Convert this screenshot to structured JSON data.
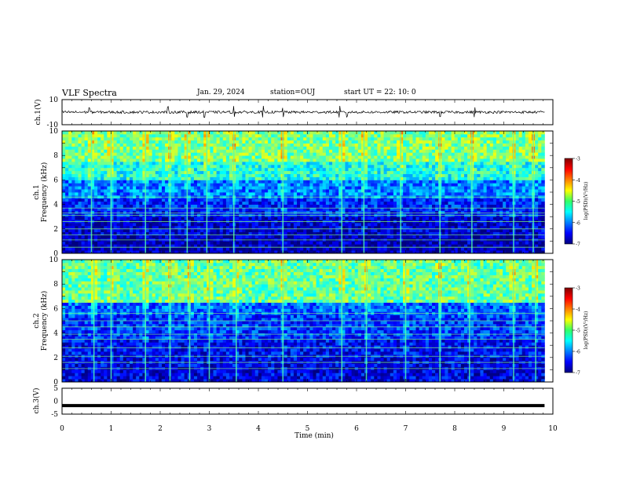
{
  "header": {
    "title": "VLF Spectra",
    "date": "Jan. 29, 2024",
    "station": "station=OUJ",
    "start": "start UT = 22: 10: 0"
  },
  "panels": {
    "ch1_waveform": {
      "ylabel": "ch.1(V)",
      "yticks": [
        "10",
        "-10"
      ]
    },
    "ch1_spectrum": {
      "ylabel_line1": "ch.1",
      "ylabel_line2": "Frequency (kHz)",
      "yticks": [
        "0",
        "2",
        "4",
        "6",
        "8",
        "10"
      ]
    },
    "ch2_spectrum": {
      "ylabel_line1": "ch.2",
      "ylabel_line2": "Frequency (kHz)",
      "yticks": [
        "0",
        "2",
        "4",
        "6",
        "8",
        "10"
      ]
    },
    "ch3_waveform": {
      "ylabel": "ch.3(V)",
      "yticks": [
        "5",
        "0",
        "-5"
      ]
    }
  },
  "colorbar": {
    "label": "log(PSD)(V²/Hz)",
    "ticks": [
      "-3",
      "-4",
      "-5",
      "-6",
      "-7"
    ]
  },
  "xaxis": {
    "label": "Time (min)",
    "ticks": [
      "0",
      "1",
      "2",
      "3",
      "4",
      "5",
      "6",
      "7",
      "8",
      "9",
      "10"
    ]
  },
  "chart_data": [
    {
      "type": "line",
      "name": "ch.1 waveform",
      "xlabel": "",
      "ylabel": "ch.1(V)",
      "xlim": [
        0,
        10
      ],
      "ylim": [
        -10,
        10
      ],
      "data_extent_x": [
        0,
        9.83
      ],
      "baseline_v": 0,
      "typical_amplitude_v": 1,
      "spike_times_min": [
        0.55,
        2.15,
        2.55,
        2.9,
        3.5,
        4.1,
        4.5,
        5.65,
        5.8,
        7.7,
        8.4
      ],
      "color": "#000000"
    },
    {
      "type": "heatmap",
      "name": "ch.1 spectrogram",
      "xlabel": "",
      "ylabel": "Frequency (kHz)",
      "xlim": [
        0,
        10
      ],
      "ylim": [
        0,
        10
      ],
      "data_extent_x": [
        0,
        9.83
      ],
      "zlabel": "log(PSD)(V²/Hz)",
      "zlim": [
        -7,
        -3
      ],
      "colormap": "jet",
      "band_levels": [
        {
          "freq_khz": [
            0,
            1.6
          ],
          "log_psd": -6.8
        },
        {
          "freq_khz": [
            1.6,
            3.0
          ],
          "log_psd": -6.7
        },
        {
          "freq_khz": [
            3.0,
            4.5
          ],
          "log_psd": -6.4
        },
        {
          "freq_khz": [
            4.5,
            6.0
          ],
          "log_psd": -6.0
        },
        {
          "freq_khz": [
            6.0,
            7.5
          ],
          "log_psd": -5.4
        },
        {
          "freq_khz": [
            7.5,
            10
          ],
          "log_psd": -5.0
        }
      ],
      "horizontal_lines_khz": [
        0.5,
        1.1,
        1.5,
        2.0,
        2.6,
        3.1,
        3.3,
        3.7,
        4.6
      ],
      "burst_times_min": [
        0.6,
        1.0,
        1.7,
        2.2,
        2.55,
        2.95,
        3.5,
        4.5,
        5.7,
        6.15,
        6.9,
        7.7,
        8.35,
        9.2,
        9.6
      ]
    },
    {
      "type": "heatmap",
      "name": "ch.2 spectrogram",
      "xlabel": "",
      "ylabel": "Frequency (kHz)",
      "xlim": [
        0,
        10
      ],
      "ylim": [
        0,
        10
      ],
      "data_extent_x": [
        0,
        9.83
      ],
      "zlabel": "log(PSD)(V²/Hz)",
      "zlim": [
        -7,
        -3
      ],
      "colormap": "jet",
      "band_levels": [
        {
          "freq_khz": [
            0,
            2.0
          ],
          "log_psd": -6.6
        },
        {
          "freq_khz": [
            2.0,
            3.5
          ],
          "log_psd": -6.5
        },
        {
          "freq_khz": [
            3.5,
            5.5
          ],
          "log_psd": -6.3
        },
        {
          "freq_khz": [
            5.5,
            6.5
          ],
          "log_psd": -6.1
        },
        {
          "freq_khz": [
            6.5,
            10
          ],
          "log_psd": -5.1
        }
      ],
      "horizontal_lines_khz": [
        1.1,
        1.6,
        2.1,
        2.8,
        3.5,
        3.9,
        4.5,
        5.0,
        5.6
      ],
      "burst_times_min": [
        0.65,
        1.0,
        1.7,
        2.2,
        2.6,
        3.0,
        3.55,
        4.5,
        5.7,
        6.2,
        7.0,
        7.7,
        8.3,
        9.2,
        9.65
      ]
    },
    {
      "type": "line",
      "name": "ch.3 waveform",
      "xlabel": "Time (min)",
      "ylabel": "ch.3(V)",
      "xlim": [
        0,
        10
      ],
      "ylim": [
        -5,
        5
      ],
      "data_extent_x": [
        0,
        9.83
      ],
      "baseline_v": -1.7,
      "color": "#000000"
    }
  ]
}
